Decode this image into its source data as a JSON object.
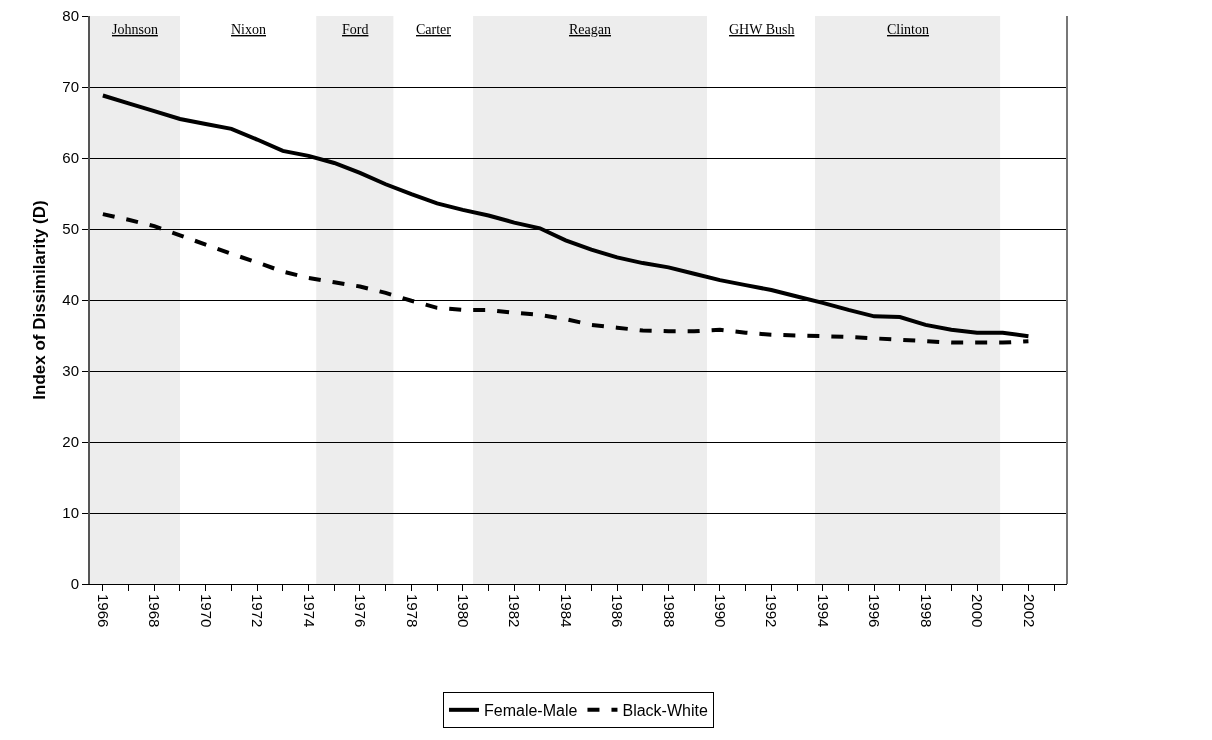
{
  "chart_data": {
    "type": "line",
    "ylabel": "Index of Dissimilarity (D)",
    "x": [
      1966,
      1967,
      1968,
      1969,
      1970,
      1971,
      1972,
      1973,
      1974,
      1975,
      1976,
      1977,
      1978,
      1979,
      1980,
      1981,
      1982,
      1983,
      1984,
      1985,
      1986,
      1987,
      1988,
      1989,
      1990,
      1991,
      1992,
      1993,
      1994,
      1995,
      1996,
      1997,
      1998,
      1999,
      2000,
      2001,
      2002
    ],
    "series": [
      {
        "name": "Female-Male",
        "color": "#000000",
        "line_style": "solid",
        "values": [
          68.8,
          67.7,
          66.6,
          65.5,
          64.8,
          64.1,
          62.6,
          61.0,
          60.3,
          59.3,
          57.9,
          56.3,
          54.9,
          53.6,
          52.7,
          51.9,
          50.9,
          50.1,
          48.4,
          47.1,
          46.0,
          45.2,
          44.6,
          43.7,
          42.8,
          42.1,
          41.4,
          40.5,
          39.6,
          38.6,
          37.7,
          37.6,
          36.5,
          35.8,
          35.4,
          35.4,
          34.9
        ]
      },
      {
        "name": "Black-White",
        "color": "#000000",
        "line_style": "dashed",
        "values": [
          52.1,
          51.3,
          50.4,
          49.1,
          47.8,
          46.5,
          45.3,
          44.0,
          43.1,
          42.5,
          41.9,
          41.0,
          39.9,
          38.9,
          38.6,
          38.6,
          38.2,
          37.9,
          37.3,
          36.5,
          36.1,
          35.7,
          35.6,
          35.6,
          35.8,
          35.4,
          35.1,
          35.0,
          34.9,
          34.8,
          34.6,
          34.4,
          34.2,
          34.0,
          34.0,
          34.0,
          34.2
        ]
      }
    ],
    "xlim": [
      1965.5,
      2003.5
    ],
    "xticks": [
      1966,
      {
        "value": 1967,
        "label": null
      },
      1968,
      {
        "value": 1969,
        "label": null
      },
      1970,
      {
        "value": 1971,
        "label": null
      },
      1972,
      {
        "value": 1973,
        "label": null
      },
      1974,
      {
        "value": 1975,
        "label": null
      },
      1976,
      {
        "value": 1977,
        "label": null
      },
      1978,
      {
        "value": 1979,
        "label": null
      },
      1980,
      {
        "value": 1981,
        "label": null
      },
      1982,
      {
        "value": 1983,
        "label": null
      },
      1984,
      {
        "value": 1985,
        "label": null
      },
      1986,
      {
        "value": 1987,
        "label": null
      },
      1988,
      {
        "value": 1989,
        "label": null
      },
      1990,
      {
        "value": 1991,
        "label": null
      },
      1992,
      {
        "value": 1993,
        "label": null
      },
      1994,
      {
        "value": 1995,
        "label": null
      },
      1996,
      {
        "value": 1997,
        "label": null
      },
      1998,
      {
        "value": 1999,
        "label": null
      },
      2000,
      {
        "value": 2001,
        "label": null
      },
      2002,
      {
        "value": 2003,
        "label": null
      }
    ],
    "ylim": [
      0,
      80
    ],
    "yticks": [
      0,
      10,
      20,
      30,
      40,
      50,
      60,
      70,
      80
    ],
    "bands": [
      {
        "axis": "x",
        "from": 1965.5,
        "to": 1969,
        "label": "Johnson",
        "color": "#ededed"
      },
      {
        "axis": "x",
        "from": 1974.3,
        "to": 1977.3,
        "label": "Ford",
        "color": "#ededed"
      },
      {
        "axis": "x",
        "from": 1980.4,
        "to": 1989.5,
        "label": "Reagan",
        "color": "#ededed"
      },
      {
        "axis": "x",
        "from": 1993.7,
        "to": 2000.9,
        "label": "Clinton",
        "color": "#ededed"
      }
    ],
    "annotations": [
      "Nixon",
      "Carter",
      "GHW Bush"
    ],
    "grid": "y",
    "legend": "bottom",
    "marker": "none"
  }
}
